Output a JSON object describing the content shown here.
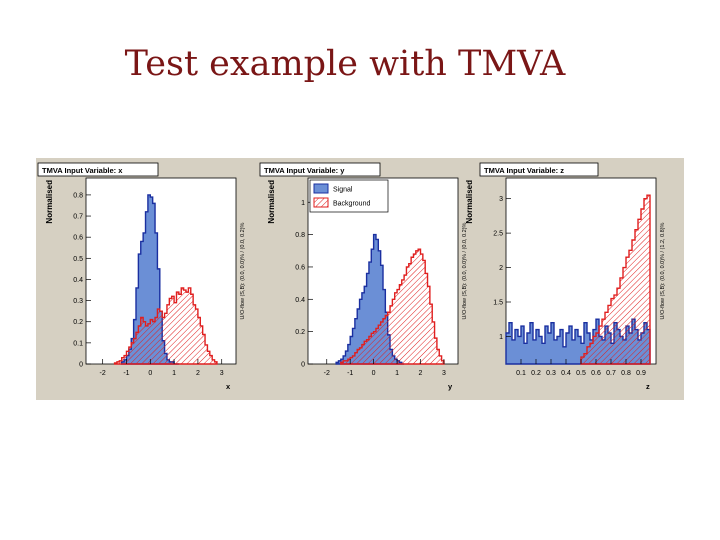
{
  "slide": {
    "title": "Test example with TMVA"
  },
  "legend": {
    "signal": "Signal",
    "background": "Background"
  },
  "colors": {
    "signal_fill": "#6b8fd6",
    "signal_line": "#1a2fa0",
    "background_line": "#e01f1f",
    "canvas_bg": "#d6d0c2"
  },
  "chart_data": [
    {
      "type": "histogram",
      "title": "TMVA Input Variable: x",
      "xlabel": "x",
      "ylabel": "Normalised",
      "side_label": "U/O-flow (S,B): (0.0, 0.0)% / (0.0, 0.2)%",
      "xlim": [
        -2.7,
        3.6
      ],
      "ylim": [
        0,
        0.88
      ],
      "xticks": [
        -2,
        -1,
        0,
        1,
        2,
        3
      ],
      "yticks": [
        0,
        0.1,
        0.2,
        0.3,
        0.4,
        0.5,
        0.6,
        0.7,
        0.8
      ],
      "bin_width": 0.1,
      "series": [
        {
          "name": "Signal",
          "x": [
            -1.2,
            -1.1,
            -1.0,
            -0.9,
            -0.8,
            -0.7,
            -0.6,
            -0.5,
            -0.4,
            -0.3,
            -0.2,
            -0.1,
            0.0,
            0.1,
            0.2,
            0.3,
            0.4,
            0.5,
            0.6,
            0.7,
            0.8,
            0.9,
            1.0,
            1.1
          ],
          "y": [
            0.01,
            0.02,
            0.04,
            0.07,
            0.12,
            0.21,
            0.36,
            0.52,
            0.58,
            0.62,
            0.72,
            0.8,
            0.79,
            0.76,
            0.62,
            0.45,
            0.25,
            0.11,
            0.05,
            0.02,
            0.01,
            0.01,
            0.0,
            0.0
          ]
        },
        {
          "name": "Background",
          "x": [
            -1.5,
            -1.4,
            -1.3,
            -1.2,
            -1.1,
            -1.0,
            -0.9,
            -0.8,
            -0.7,
            -0.6,
            -0.5,
            -0.4,
            -0.3,
            -0.2,
            -0.1,
            0.0,
            0.1,
            0.2,
            0.3,
            0.4,
            0.5,
            0.6,
            0.7,
            0.8,
            0.9,
            1.0,
            1.1,
            1.2,
            1.3,
            1.4,
            1.5,
            1.6,
            1.7,
            1.8,
            1.9,
            2.0,
            2.1,
            2.2,
            2.3,
            2.4,
            2.5,
            2.6,
            2.7
          ],
          "y": [
            0.005,
            0.01,
            0.015,
            0.03,
            0.04,
            0.06,
            0.08,
            0.1,
            0.12,
            0.15,
            0.18,
            0.22,
            0.2,
            0.18,
            0.19,
            0.21,
            0.2,
            0.22,
            0.26,
            0.25,
            0.22,
            0.24,
            0.28,
            0.31,
            0.32,
            0.29,
            0.34,
            0.33,
            0.36,
            0.35,
            0.34,
            0.36,
            0.33,
            0.28,
            0.26,
            0.22,
            0.18,
            0.14,
            0.09,
            0.06,
            0.04,
            0.02,
            0.01
          ]
        }
      ]
    },
    {
      "type": "histogram",
      "title": "TMVA Input Variable: y",
      "xlabel": "y",
      "ylabel": "Normalised",
      "side_label": "U/O-flow (S,B): (0.0, 0.0)% / (0.0, 0.2)%",
      "xlim": [
        -2.8,
        3.6
      ],
      "ylim": [
        0,
        1.15
      ],
      "xticks": [
        -2,
        -1,
        0,
        1,
        2,
        3
      ],
      "yticks": [
        0,
        0.2,
        0.4,
        0.6,
        0.8,
        1
      ],
      "bin_width": 0.1,
      "series": [
        {
          "name": "Signal",
          "x": [
            -1.6,
            -1.5,
            -1.4,
            -1.3,
            -1.2,
            -1.1,
            -1.0,
            -0.9,
            -0.8,
            -0.7,
            -0.6,
            -0.5,
            -0.4,
            -0.3,
            -0.2,
            -0.1,
            0.0,
            0.1,
            0.2,
            0.3,
            0.4,
            0.5,
            0.6,
            0.7,
            0.8,
            0.9,
            1.0,
            1.1,
            1.2
          ],
          "y": [
            0.01,
            0.02,
            0.03,
            0.05,
            0.08,
            0.12,
            0.17,
            0.22,
            0.28,
            0.34,
            0.4,
            0.44,
            0.48,
            0.56,
            0.63,
            0.71,
            0.8,
            0.77,
            0.7,
            0.61,
            0.46,
            0.32,
            0.18,
            0.09,
            0.05,
            0.03,
            0.02,
            0.01,
            0.0
          ]
        },
        {
          "name": "Background",
          "x": [
            -1.4,
            -1.3,
            -1.2,
            -1.1,
            -1.0,
            -0.9,
            -0.8,
            -0.7,
            -0.6,
            -0.5,
            -0.4,
            -0.3,
            -0.2,
            -0.1,
            0.0,
            0.1,
            0.2,
            0.3,
            0.4,
            0.5,
            0.6,
            0.7,
            0.8,
            0.9,
            1.0,
            1.1,
            1.2,
            1.3,
            1.4,
            1.5,
            1.6,
            1.7,
            1.8,
            1.9,
            2.0,
            2.1,
            2.2,
            2.3,
            2.4,
            2.5,
            2.6,
            2.7,
            2.8,
            2.9
          ],
          "y": [
            0.01,
            0.02,
            0.02,
            0.03,
            0.04,
            0.05,
            0.07,
            0.09,
            0.1,
            0.12,
            0.14,
            0.15,
            0.17,
            0.19,
            0.2,
            0.22,
            0.24,
            0.26,
            0.28,
            0.3,
            0.32,
            0.36,
            0.4,
            0.44,
            0.46,
            0.49,
            0.52,
            0.55,
            0.6,
            0.62,
            0.66,
            0.68,
            0.7,
            0.71,
            0.68,
            0.64,
            0.56,
            0.48,
            0.37,
            0.26,
            0.16,
            0.09,
            0.05,
            0.02
          ]
        }
      ]
    },
    {
      "type": "histogram",
      "title": "TMVA Input Variable: z",
      "xlabel": "z",
      "ylabel": "Normalised",
      "side_label": "U/O-flow (S,B): (0.0, 0.0)% / (1.2, 0.8)%",
      "xlim": [
        0,
        1.0
      ],
      "ylim": [
        0.6,
        3.3
      ],
      "xticks": [
        0.1,
        0.2,
        0.3,
        0.4,
        0.5,
        0.6,
        0.7,
        0.8,
        0.9
      ],
      "yticks": [
        1,
        1.5,
        2,
        2.5,
        3
      ],
      "bin_width": 0.02,
      "series": [
        {
          "name": "Signal",
          "x": [
            0.0,
            0.02,
            0.04,
            0.06,
            0.08,
            0.1,
            0.12,
            0.14,
            0.16,
            0.18,
            0.2,
            0.22,
            0.24,
            0.26,
            0.28,
            0.3,
            0.32,
            0.34,
            0.36,
            0.38,
            0.4,
            0.42,
            0.44,
            0.46,
            0.48,
            0.5,
            0.52,
            0.54,
            0.56,
            0.58,
            0.6,
            0.62,
            0.64,
            0.66,
            0.68,
            0.7,
            0.72,
            0.74,
            0.76,
            0.78,
            0.8,
            0.82,
            0.84,
            0.86,
            0.88,
            0.9,
            0.92,
            0.94
          ],
          "y": [
            1.05,
            1.2,
            0.95,
            1.1,
            1.0,
            1.15,
            0.9,
            1.05,
            1.2,
            0.95,
            1.1,
            1.0,
            0.9,
            1.15,
            1.05,
            1.2,
            0.95,
            1.0,
            1.1,
            0.85,
            1.05,
            1.15,
            0.95,
            1.1,
            1.0,
            0.9,
            1.2,
            1.05,
            0.95,
            1.1,
            1.25,
            1.0,
            0.95,
            1.15,
            1.05,
            0.9,
            1.2,
            1.1,
            1.0,
            0.95,
            1.15,
            1.05,
            1.25,
            1.1,
            0.95,
            1.05,
            1.2,
            1.1
          ]
        },
        {
          "name": "Background",
          "x": [
            0.5,
            0.52,
            0.54,
            0.56,
            0.58,
            0.6,
            0.62,
            0.64,
            0.66,
            0.68,
            0.7,
            0.72,
            0.74,
            0.76,
            0.78,
            0.8,
            0.82,
            0.84,
            0.86,
            0.88,
            0.9,
            0.92,
            0.94
          ],
          "y": [
            0.7,
            0.75,
            0.85,
            0.9,
            1.0,
            1.05,
            1.15,
            1.25,
            1.35,
            1.45,
            1.55,
            1.6,
            1.7,
            1.85,
            2.0,
            2.15,
            2.25,
            2.4,
            2.55,
            2.7,
            2.85,
            3.0,
            3.05
          ]
        }
      ]
    }
  ]
}
